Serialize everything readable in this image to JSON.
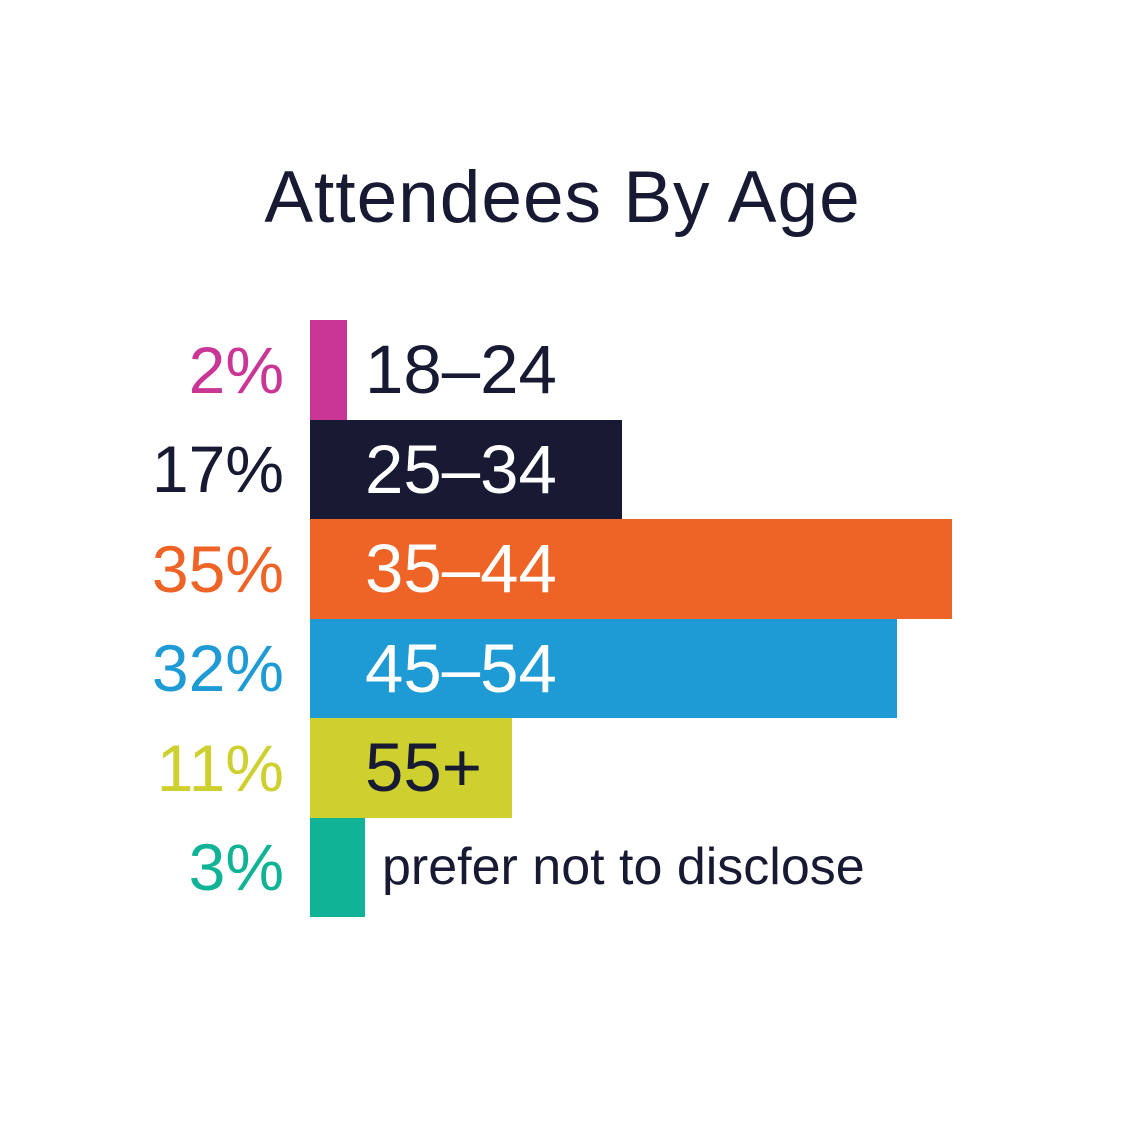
{
  "title": "Attendees By Age",
  "chart_data": {
    "type": "bar",
    "orientation": "horizontal",
    "title": "Attendees By Age",
    "categories": [
      "18–24",
      "25–34",
      "35–44",
      "45–54",
      "55+",
      "prefer not to disclose"
    ],
    "values": [
      2,
      17,
      35,
      32,
      11,
      3
    ],
    "value_labels": [
      "2%",
      "17%",
      "35%",
      "32%",
      "11%",
      "3%"
    ],
    "xlim": [
      0,
      35
    ],
    "grid": false,
    "legend": false,
    "bar_colors": [
      "#c93695",
      "#181a33",
      "#ee6426",
      "#1e9ad4",
      "#cdd02e",
      "#10b396"
    ],
    "category_label_colors": [
      "#181a33",
      "#ffffff",
      "#ffffff",
      "#ffffff",
      "#181a33",
      "#181a33"
    ],
    "value_label_colors": [
      "#c93695",
      "#181a33",
      "#ee6426",
      "#1e9ad4",
      "#cdd02e",
      "#10b396"
    ],
    "label_placement": [
      "outside",
      "inside",
      "inside",
      "inside",
      "inside",
      "outside"
    ]
  },
  "colors": {
    "background": "#ffffff",
    "title_text": "#181a33"
  }
}
